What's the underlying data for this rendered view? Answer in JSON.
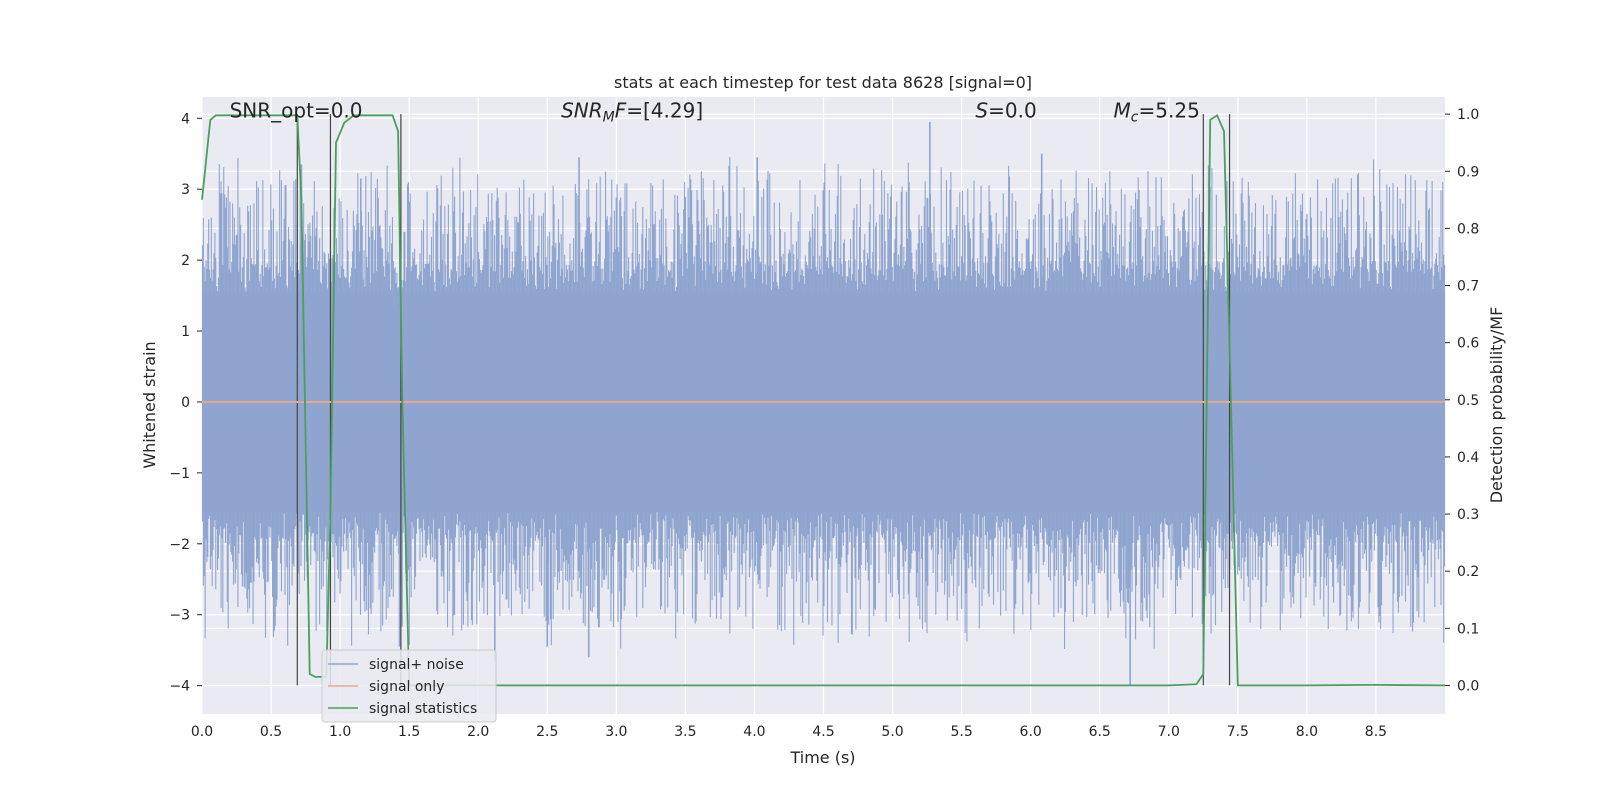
{
  "chart_data": {
    "type": "line",
    "title": "stats at each timestep for test data 8628 [signal=0]",
    "xlabel": "Time (s)",
    "ylabel_left": "Whitened strain",
    "ylabel_right": "Detection probability/MF",
    "xlim": [
      0.0,
      9.0
    ],
    "ylim_left": [
      -4.4,
      4.3
    ],
    "ylim_right": [
      -0.05,
      1.03
    ],
    "x_ticks": [
      0.0,
      0.5,
      1.0,
      1.5,
      2.0,
      2.5,
      3.0,
      3.5,
      4.0,
      4.5,
      5.0,
      5.5,
      6.0,
      6.5,
      7.0,
      7.5,
      8.0,
      8.5
    ],
    "x_tick_labels": [
      "0.0",
      "0.5",
      "1.0",
      "1.5",
      "2.0",
      "2.5",
      "3.0",
      "3.5",
      "4.0",
      "4.5",
      "5.0",
      "5.5",
      "6.0",
      "6.5",
      "7.0",
      "7.5",
      "8.0",
      "8.5"
    ],
    "y_ticks_left": [
      4,
      3,
      2,
      1,
      0,
      -1,
      -2,
      -3,
      -4
    ],
    "y_tick_labels_left": [
      "4",
      "3",
      "2",
      "1",
      "0",
      "−1",
      "−2",
      "−3",
      "−4"
    ],
    "y_ticks_right": [
      1.0,
      0.9,
      0.8,
      0.7,
      0.6,
      0.5,
      0.4,
      0.3,
      0.2,
      0.1,
      0.0
    ],
    "y_tick_labels_right": [
      "1.0",
      "0.9",
      "0.8",
      "0.7",
      "0.6",
      "0.5",
      "0.4",
      "0.3",
      "0.2",
      "0.1",
      "0.0"
    ],
    "grid": true,
    "legend_position": "lower-left",
    "annotations": [
      {
        "text": "SNR_opt=0.0",
        "x": 0.2,
        "y": 4.05,
        "italic": false
      },
      {
        "text": "SNR_MF=[4.29]",
        "x": 2.6,
        "y": 4.05,
        "italic": true,
        "display_base": "SNR",
        "display_sub": "M",
        "display_rest": "F=[4.29]"
      },
      {
        "text": "S=0.0",
        "x": 5.6,
        "y": 4.05,
        "italic": true,
        "display_base": "S",
        "display_sub": "",
        "display_rest": "=0.0"
      },
      {
        "text": "M_c=5.25",
        "x": 6.6,
        "y": 4.05,
        "italic": true,
        "display_base": "M",
        "display_sub": "c",
        "display_rest": "=5.25"
      }
    ],
    "vertical_markers": [
      0.69,
      0.93,
      1.44,
      7.25,
      7.44
    ],
    "noise_spikes": [
      {
        "x": 0.72,
        "y": 3.35
      },
      {
        "x": 1.15,
        "y": 3.15
      },
      {
        "x": 2.73,
        "y": 3.45
      },
      {
        "x": 4.02,
        "y": 3.45
      },
      {
        "x": 5.27,
        "y": 3.95
      },
      {
        "x": 6.08,
        "y": 3.5
      },
      {
        "x": 2.12,
        "y": -3.65
      },
      {
        "x": 2.5,
        "y": -3.45
      },
      {
        "x": 2.8,
        "y": -3.6
      },
      {
        "x": 6.72,
        "y": -4.0
      },
      {
        "x": 1.43,
        "y": -3.45
      }
    ],
    "series": [
      {
        "name": "signal+ noise",
        "color": "#8fa5cf",
        "axis": "left",
        "style": "dense-noise",
        "amplitude_core": 1.55,
        "amplitude_peak_typical": 2.5
      },
      {
        "name": "signal only",
        "color": "#e8a98b",
        "axis": "left",
        "x": [
          0.0,
          9.0
        ],
        "y": [
          0.0,
          0.0
        ]
      },
      {
        "name": "signal statistics",
        "color": "#4aa05a",
        "axis": "right",
        "x": [
          0.0,
          0.06,
          0.1,
          0.2,
          0.4,
          0.6,
          0.69,
          0.72,
          0.78,
          0.82,
          0.9,
          0.93,
          0.97,
          1.03,
          1.1,
          1.2,
          1.38,
          1.42,
          1.45,
          1.5,
          1.6,
          2.0,
          3.0,
          4.0,
          5.0,
          6.0,
          7.0,
          7.2,
          7.25,
          7.3,
          7.35,
          7.4,
          7.44,
          7.5,
          7.55,
          8.0,
          8.5,
          9.0
        ],
        "y": [
          0.85,
          0.99,
          0.998,
          0.998,
          0.998,
          0.998,
          0.998,
          0.85,
          0.02,
          0.015,
          0.015,
          0.3,
          0.95,
          0.985,
          0.998,
          0.998,
          0.998,
          0.97,
          0.5,
          0.0,
          0.0,
          0.0,
          0.0,
          0.0,
          0.0,
          0.0,
          0.0,
          0.002,
          0.02,
          0.99,
          0.998,
          0.97,
          0.6,
          0.0,
          0.0,
          0.0,
          0.001,
          0.0
        ]
      }
    ]
  }
}
